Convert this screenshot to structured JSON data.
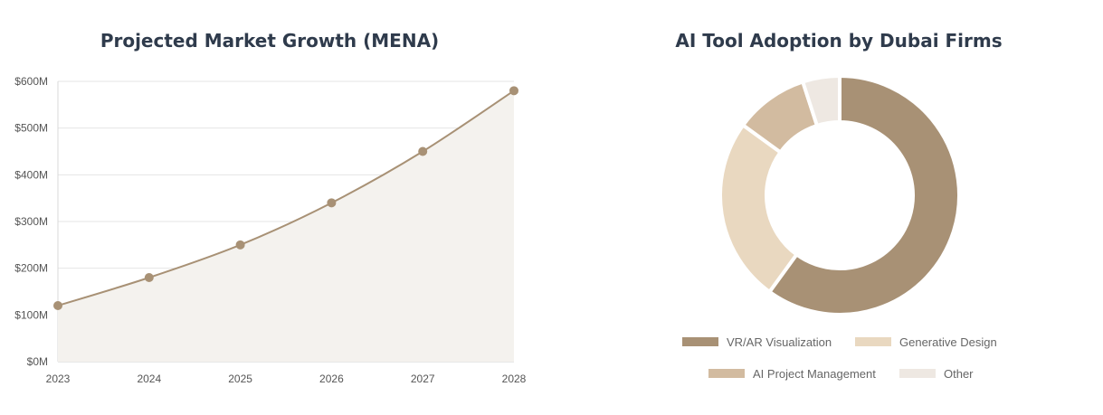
{
  "chart_data": [
    {
      "type": "line",
      "title": "Projected Market Growth (MENA)",
      "x": [
        "2023",
        "2024",
        "2025",
        "2026",
        "2027",
        "2028"
      ],
      "series": [
        {
          "values": [
            120,
            180,
            250,
            340,
            450,
            580
          ]
        }
      ],
      "y_ticks": [
        "$0M",
        "$100M",
        "$200M",
        "$300M",
        "$400M",
        "$500M",
        "$600M"
      ],
      "ylim": [
        0,
        600
      ],
      "fill": true,
      "grid": true,
      "colors": {
        "line": "#a89175",
        "fill": "#f4f2ee",
        "point": "#a89175",
        "grid": "#e5e5e5"
      }
    },
    {
      "type": "pie",
      "title": "AI Tool Adoption by Dubai Firms",
      "donut": true,
      "labels": [
        "VR/AR Visualization",
        "Generative Design",
        "AI Project Management",
        "Other"
      ],
      "values": [
        60,
        25,
        10,
        5
      ],
      "colors": [
        "#a89175",
        "#e9d8c0",
        "#d2bba0",
        "#eee8e2"
      ],
      "legend_position": "bottom"
    }
  ]
}
